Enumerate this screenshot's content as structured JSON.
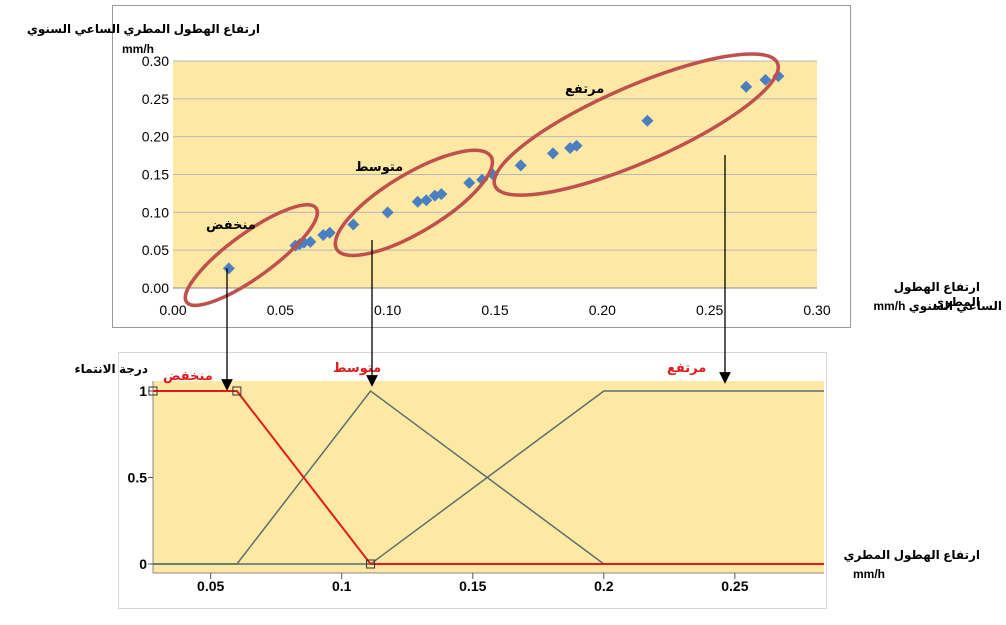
{
  "chart_data": [
    {
      "type": "scatter",
      "ylabel": "ارتفاع الهطول المطري الساعي السنوي",
      "yunit": "mm/h",
      "xlabel_line1": "ارتفاع الهطول المطري",
      "xlabel_line2": "الساعي السنوي  mm/h",
      "xlim": [
        0,
        0.3
      ],
      "ylim": [
        0,
        0.3
      ],
      "xticks": [
        "0.00",
        "0.05",
        "0.10",
        "0.15",
        "0.20",
        "0.25",
        "0.30"
      ],
      "yticks": [
        "0.00",
        "0.05",
        "0.10",
        "0.15",
        "0.20",
        "0.25",
        "0.30"
      ],
      "grid": true,
      "marker_color": "#4a7fc1",
      "background_color": "#fde9a4",
      "cluster_color": "#c0504d",
      "points": [
        [
          0.026,
          0.026
        ],
        [
          0.057,
          0.056
        ],
        [
          0.059,
          0.058
        ],
        [
          0.061,
          0.06
        ],
        [
          0.064,
          0.061
        ],
        [
          0.07,
          0.07
        ],
        [
          0.073,
          0.073
        ],
        [
          0.084,
          0.084
        ],
        [
          0.1,
          0.1
        ],
        [
          0.114,
          0.114
        ],
        [
          0.118,
          0.116
        ],
        [
          0.122,
          0.122
        ],
        [
          0.125,
          0.124
        ],
        [
          0.138,
          0.139
        ],
        [
          0.144,
          0.143
        ],
        [
          0.149,
          0.15
        ],
        [
          0.162,
          0.162
        ],
        [
          0.177,
          0.178
        ],
        [
          0.185,
          0.185
        ],
        [
          0.188,
          0.188
        ],
        [
          0.221,
          0.221
        ],
        [
          0.267,
          0.266
        ],
        [
          0.276,
          0.275
        ],
        [
          0.282,
          0.28
        ]
      ],
      "clusters": [
        {
          "label": "منخفض",
          "x_center": 0.0365,
          "y_center": 0.0435
        },
        {
          "label": "متوسط",
          "x_center": 0.1122,
          "y_center": 0.1125
        },
        {
          "label": "مرتفع",
          "x_center": 0.2158,
          "y_center": 0.216
        }
      ]
    },
    {
      "type": "line",
      "ylabel": "درجة الانتماء",
      "xlabel": "ارتفاع الهطول المطري",
      "xunit": "mm/h",
      "xlim": [
        0.028,
        0.284
      ],
      "ylim": [
        0,
        1
      ],
      "xticks": [
        0.05,
        0.1,
        0.15,
        0.2,
        0.25
      ],
      "xtick_labels": [
        "0.05",
        "0.1",
        "0.15",
        "0.2",
        "0.25"
      ],
      "yticks": [
        0,
        0.5,
        1
      ],
      "ytick_labels": [
        "0",
        "0.5",
        "1"
      ],
      "background_color": "#fde9a4",
      "series": [
        {
          "name": "منخفض",
          "color": "#e31a1c",
          "x": [
            0.028,
            0.06,
            0.111,
            0.284
          ],
          "y": [
            1,
            1,
            0,
            0
          ]
        },
        {
          "name": "متوسط",
          "color": "#5a6e6e",
          "x": [
            0.028,
            0.06,
            0.111,
            0.2,
            0.284
          ],
          "y": [
            0,
            0,
            1,
            0,
            0
          ]
        },
        {
          "name": "مرتفع",
          "color": "#5a6e6e",
          "x": [
            0.028,
            0.111,
            0.2,
            0.284
          ],
          "y": [
            0,
            0,
            1,
            1
          ]
        }
      ],
      "series_label_color": "#e31a1c"
    }
  ]
}
